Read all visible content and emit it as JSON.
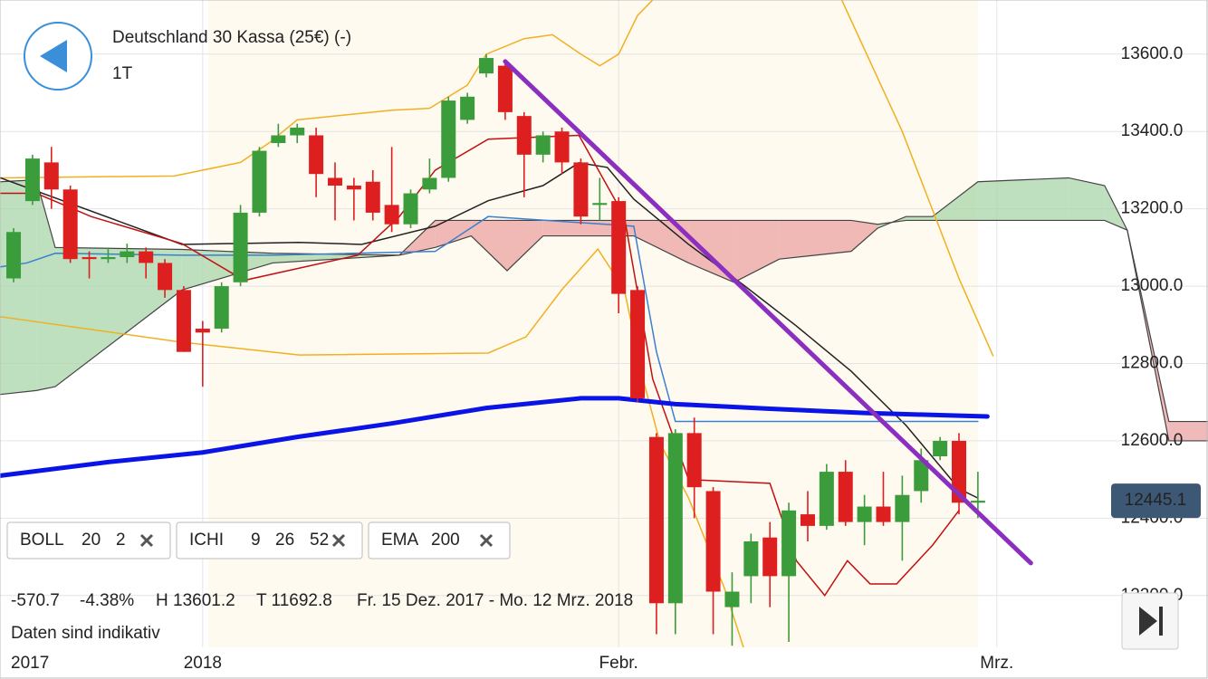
{
  "header": {
    "title": "Deutschland 30 Kassa (25€) (-)",
    "period": "1T"
  },
  "chart_data": {
    "type": "candlestick",
    "xlim": [
      -0.72,
      63.17
    ],
    "ylim": [
      12066,
      13740
    ],
    "xticks": [
      {
        "value": -0.72,
        "label": "2017"
      },
      {
        "value": 10,
        "label": "2018"
      },
      {
        "value": 32,
        "label": "Febr."
      },
      {
        "value": 52,
        "label": "Mrz."
      }
    ],
    "yticks": [
      {
        "value": 12200,
        "label": "12200.0"
      },
      {
        "value": 12400,
        "label": "12400.0"
      },
      {
        "value": 12600,
        "label": "12600.0"
      },
      {
        "value": 12800,
        "label": "12800.0"
      },
      {
        "value": 13000,
        "label": "13000.0"
      },
      {
        "value": 13200,
        "label": "13200.0"
      },
      {
        "value": 13400,
        "label": "13400.0"
      },
      {
        "value": 13600,
        "label": "13600.0"
      }
    ],
    "grid": true,
    "up_color": "#3a9c3a",
    "down_color": "#dd1f1f",
    "candles": {
      "open": [
        13020,
        13220,
        13320,
        13250,
        13075,
        13070,
        13075,
        13090,
        13060,
        12990,
        12890,
        12890,
        13010,
        13190,
        13370,
        13390,
        13390,
        13280,
        13260,
        13270,
        13210,
        13160,
        13250,
        13280,
        13430,
        13550,
        13570,
        13440,
        13340,
        13400,
        13320,
        13210,
        13220,
        12990,
        12610,
        12180,
        12620,
        12470,
        12170,
        12250,
        12350,
        12250,
        12410,
        12380,
        12520,
        12390,
        12430,
        12390,
        12470,
        12560,
        12600,
        12440
      ],
      "high": [
        13150,
        13340,
        13360,
        13260,
        13090,
        13100,
        13110,
        13100,
        13070,
        13000,
        12910,
        13010,
        13210,
        13360,
        13420,
        13420,
        13410,
        13320,
        13280,
        13300,
        13360,
        13250,
        13330,
        13490,
        13500,
        13600,
        13580,
        13450,
        13400,
        13410,
        13330,
        13280,
        13230,
        13000,
        12620,
        12630,
        12660,
        12480,
        12260,
        12360,
        12390,
        12440,
        12470,
        12540,
        12550,
        12460,
        12520,
        12510,
        12580,
        12610,
        12620,
        12520
      ],
      "low": [
        13010,
        13210,
        13200,
        13060,
        13020,
        13060,
        13060,
        13020,
        12970,
        12830,
        12740,
        12880,
        13000,
        13180,
        13360,
        13370,
        13230,
        13170,
        13170,
        13170,
        13140,
        13150,
        13240,
        13270,
        13420,
        13540,
        13430,
        13230,
        13320,
        13290,
        13160,
        13170,
        12930,
        12700,
        12100,
        12100,
        12400,
        12100,
        12070,
        12180,
        12170,
        12080,
        12340,
        12370,
        12380,
        12330,
        12380,
        12290,
        12440,
        12550,
        12410,
        12400
      ],
      "close": [
        13140,
        13330,
        13250,
        13070,
        13070,
        13075,
        13090,
        13060,
        12990,
        12830,
        12880,
        13000,
        13190,
        13350,
        13390,
        13410,
        13290,
        13260,
        13250,
        13190,
        13160,
        13240,
        13280,
        13480,
        13490,
        13590,
        13450,
        13340,
        13390,
        13320,
        13180,
        13215,
        12980,
        12710,
        12180,
        12620,
        12480,
        12210,
        12210,
        12340,
        12250,
        12420,
        12380,
        12520,
        12390,
        12430,
        12390,
        12460,
        12550,
        12600,
        12440,
        12445.1
      ]
    },
    "last_price": {
      "value": 12445.1,
      "label": "12445.1"
    },
    "cloud": {
      "green": "#a8d5a8",
      "red": "#eba3a3",
      "x": [
        -0.7,
        1.2,
        2.2,
        8.9,
        13.7,
        20.4,
        22.3,
        24.2,
        26.1,
        28.0,
        32.8,
        35.7,
        38.1,
        40.5,
        44.3,
        45.7,
        47.2,
        48.6,
        51.0,
        55.8,
        57.7,
        58.9,
        61.1,
        63.2
      ],
      "span_a": [
        13270,
        13275,
        13100,
        13095,
        13085,
        13080,
        13100,
        13130,
        13040,
        13130,
        13130,
        13060,
        13010,
        13070,
        13090,
        13150,
        13180,
        13180,
        13270,
        13280,
        13260,
        13145,
        12600,
        12600
      ],
      "span_b": [
        12720,
        12730,
        12740,
        12990,
        13060,
        13080,
        13170,
        13170,
        13170,
        13170,
        13170,
        13170,
        13170,
        13170,
        13170,
        13160,
        13170,
        13170,
        13170,
        13170,
        13170,
        13145,
        12650,
        12650
      ]
    },
    "series": [
      {
        "name": "BOLL upper",
        "color": "#f0b020",
        "x": [
          -0.7,
          8.5,
          12,
          13.5,
          15,
          20,
          22,
          24,
          25,
          27,
          28.5,
          30,
          31,
          32,
          33,
          33.8,
          34,
          43.8,
          47,
          50,
          51.8
        ],
        "values": [
          13280,
          13285,
          13320,
          13370,
          13430,
          13455,
          13460,
          13520,
          13600,
          13640,
          13650,
          13600,
          13570,
          13600,
          13700,
          13740,
          null,
          13740,
          13400,
          13020,
          12820
        ]
      },
      {
        "name": "BOLL lower",
        "color": "#f0b020",
        "x": [
          -0.7,
          8.9,
          15.1,
          25.1,
          27.1,
          29.0,
          30.9,
          32.3,
          33.3,
          34.2,
          35.7,
          37.6,
          38.6
        ],
        "values": [
          12921,
          12855,
          12822,
          12827,
          12869,
          12991,
          13096,
          12991,
          12757,
          12593,
          12452,
          12218,
          12066
        ]
      },
      {
        "name": "BOLL middle",
        "color": "#222222",
        "x": [
          -0.7,
          8.9,
          15.1,
          18.4,
          22.3,
          25.1,
          28.0,
          29.9,
          31.4,
          32.8,
          35.7,
          38.6,
          41.4,
          44.3,
          47.2,
          50.0,
          51.0
        ],
        "values": [
          13280,
          13108,
          13113,
          13108,
          13155,
          13221,
          13260,
          13319,
          13307,
          13225,
          13108,
          13003,
          12897,
          12780,
          12640,
          12476,
          12452
        ]
      },
      {
        "name": "ICHI kijun",
        "color": "#3a7fd0",
        "x": [
          -0.7,
          0.7,
          2.2,
          8.9,
          13.7,
          22.3,
          25.1,
          32.8,
          34.0,
          35.0,
          51.0
        ],
        "values": [
          13050,
          13060,
          13085,
          13080,
          13080,
          13090,
          13180,
          13155,
          12830,
          12650,
          12650
        ]
      },
      {
        "name": "ICHI tenkan",
        "color": "#c01010",
        "x": [
          -0.7,
          1.2,
          4.1,
          8.9,
          12.2,
          18.2,
          20.4,
          22.3,
          25.1,
          29.9,
          32.3,
          33.8,
          35.7,
          40.0,
          41.4,
          42.9,
          44.1,
          45.3,
          46.7,
          48.6,
          50.0
        ],
        "values": [
          13240,
          13240,
          13180,
          13110,
          13015,
          13080,
          13180,
          13300,
          13380,
          13390,
          13180,
          12760,
          12500,
          12490,
          12290,
          12200,
          12290,
          12230,
          12230,
          12330,
          12420
        ]
      },
      {
        "name": "EMA 200",
        "color": "#0a14e6",
        "x": [
          -0.7,
          5,
          10,
          15,
          20,
          25,
          30,
          32,
          35,
          40,
          45,
          50,
          51.5
        ],
        "values": [
          12510,
          12545,
          12570,
          12610,
          12645,
          12685,
          12710,
          12710,
          12695,
          12683,
          12672,
          12665,
          12663
        ]
      },
      {
        "name": "trend",
        "color": "#8a2fc0",
        "x": [
          26.0,
          53.8
        ],
        "values": [
          13581,
          12284
        ]
      }
    ]
  },
  "indicators": [
    {
      "name": "BOLL",
      "params": [
        20,
        2
      ]
    },
    {
      "name": "ICHI",
      "params": [
        9,
        26,
        52
      ]
    },
    {
      "name": "EMA",
      "params": [
        200
      ]
    }
  ],
  "stats": [
    "-570.7",
    "-4.38%",
    "H 13601.2",
    "T 11692.8"
  ],
  "range": "Fr. 15 Dez. 2017 - Mo. 12 Mrz. 2018",
  "note": "Daten sind indikativ"
}
